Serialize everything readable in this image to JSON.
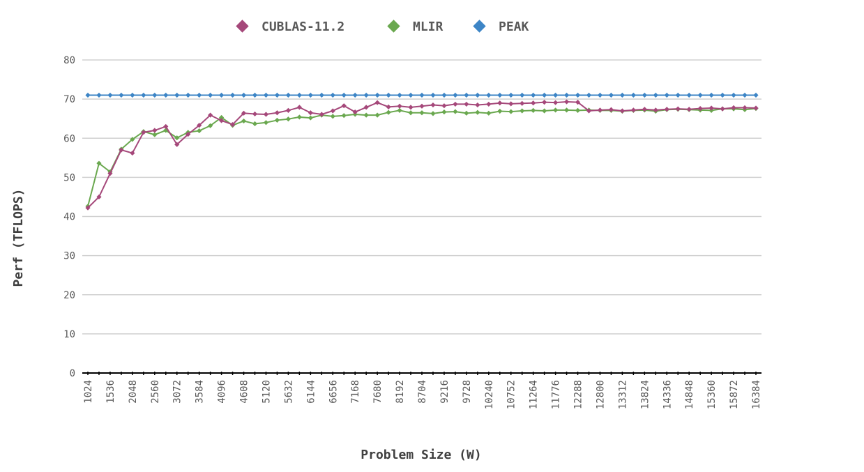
{
  "chart_data": {
    "type": "line",
    "xlabel": "Problem Size (W)",
    "ylabel": "Perf (TFLOPS)",
    "ylim": [
      0,
      80
    ],
    "yticks": [
      0,
      10,
      20,
      30,
      40,
      50,
      60,
      70,
      80
    ],
    "grid": "horizontal",
    "legend_position": "top-center",
    "x": [
      1024,
      1280,
      1536,
      1792,
      2048,
      2304,
      2560,
      2816,
      3072,
      3328,
      3584,
      3840,
      4096,
      4352,
      4608,
      4864,
      5120,
      5376,
      5632,
      5888,
      6144,
      6400,
      6656,
      6912,
      7168,
      7424,
      7680,
      7936,
      8192,
      8448,
      8704,
      8960,
      9216,
      9472,
      9728,
      9984,
      10240,
      10496,
      10752,
      11008,
      11264,
      11520,
      11776,
      12032,
      12288,
      12544,
      12800,
      13056,
      13312,
      13568,
      13824,
      14080,
      14336,
      14592,
      14848,
      15104,
      15360,
      15616,
      15872,
      16128,
      16384
    ],
    "x_tick_labels": [
      "1024",
      "1536",
      "2048",
      "2560",
      "3072",
      "3584",
      "4096",
      "4608",
      "5120",
      "5632",
      "6144",
      "6656",
      "7168",
      "7680",
      "8192",
      "8704",
      "9216",
      "9728",
      "10240",
      "10752",
      "11264",
      "11776",
      "12288",
      "12800",
      "13312",
      "13824",
      "14336",
      "14848",
      "15360",
      "15872",
      "16384"
    ],
    "series": [
      {
        "name": "CUBLAS-11.2",
        "color": "#A5487A",
        "values": [
          42.2,
          45.0,
          51.0,
          57.0,
          56.2,
          61.5,
          62.0,
          63.0,
          58.4,
          61.0,
          63.3,
          65.9,
          64.5,
          63.5,
          66.4,
          66.2,
          66.1,
          66.5,
          67.1,
          67.9,
          66.5,
          66.1,
          67.0,
          68.3,
          66.7,
          67.9,
          69.1,
          68.0,
          68.2,
          67.9,
          68.2,
          68.5,
          68.3,
          68.7,
          68.7,
          68.5,
          68.7,
          69.0,
          68.8,
          68.9,
          69.0,
          69.2,
          69.1,
          69.3,
          69.2,
          67.0,
          67.2,
          67.3,
          67.0,
          67.2,
          67.4,
          67.2,
          67.4,
          67.5,
          67.4,
          67.6,
          67.7,
          67.5,
          67.8,
          67.8,
          67.7
        ]
      },
      {
        "name": "MLIR",
        "color": "#6AA84F",
        "values": [
          42.6,
          53.6,
          51.4,
          57.2,
          59.7,
          61.7,
          60.9,
          62.0,
          60.1,
          61.5,
          61.9,
          63.2,
          65.3,
          63.3,
          64.4,
          63.7,
          64.0,
          64.6,
          64.9,
          65.4,
          65.2,
          65.9,
          65.6,
          65.8,
          66.1,
          65.9,
          65.9,
          66.6,
          67.1,
          66.5,
          66.5,
          66.3,
          66.7,
          66.8,
          66.4,
          66.6,
          66.4,
          66.9,
          66.8,
          67.0,
          67.1,
          67.0,
          67.2,
          67.2,
          67.1,
          67.2,
          67.1,
          67.1,
          66.9,
          67.1,
          67.2,
          66.9,
          67.3,
          67.4,
          67.3,
          67.2,
          67.1,
          67.5,
          67.5,
          67.3,
          67.6
        ]
      },
      {
        "name": "PEAK",
        "color": "#3D85C6",
        "values": [
          71,
          71,
          71,
          71,
          71,
          71,
          71,
          71,
          71,
          71,
          71,
          71,
          71,
          71,
          71,
          71,
          71,
          71,
          71,
          71,
          71,
          71,
          71,
          71,
          71,
          71,
          71,
          71,
          71,
          71,
          71,
          71,
          71,
          71,
          71,
          71,
          71,
          71,
          71,
          71,
          71,
          71,
          71,
          71,
          71,
          71,
          71,
          71,
          71,
          71,
          71,
          71,
          71,
          71,
          71,
          71,
          71,
          71,
          71,
          71,
          71
        ]
      }
    ]
  }
}
